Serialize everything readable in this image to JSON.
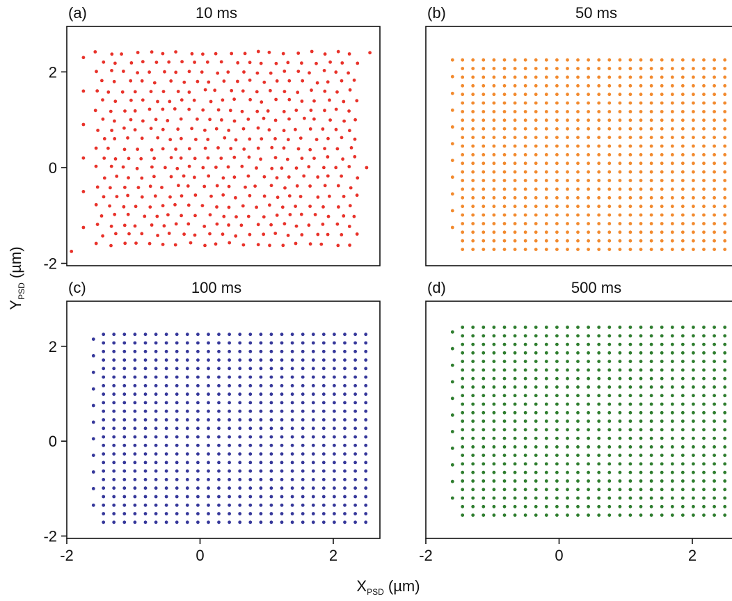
{
  "figure": {
    "xlabel_main": "X",
    "xlabel_sub": "PSD",
    "xlabel_unit": " (µm)",
    "ylabel_main": "Y",
    "ylabel_sub": "PSD",
    "ylabel_unit": " (µm)"
  },
  "chart_data": [
    {
      "type": "scatter",
      "panel": "(a)",
      "title": "10 ms",
      "color": "#e8322a",
      "xlim": [
        -2,
        2.7
      ],
      "ylim": [
        -2.05,
        2.95
      ],
      "xticks": [],
      "yticks": [
        -2,
        0,
        2
      ],
      "yticklabels": [
        "-2",
        "0",
        "2"
      ],
      "grid": {
        "x_start": -1.55,
        "x_step": 0.2,
        "x_count": 20,
        "y_start": 2.4,
        "y_step": 0.2,
        "y_count": 21
      },
      "jitter": true,
      "extra_points": [
        [
          -1.93,
          -1.75
        ],
        [
          -1.75,
          2.3
        ],
        [
          -1.75,
          1.6
        ],
        [
          -1.75,
          0.9
        ],
        [
          -1.75,
          0.2
        ],
        [
          -1.75,
          -0.5
        ],
        [
          -1.75,
          -1.25
        ],
        [
          2.55,
          2.4
        ],
        [
          2.5,
          0.0
        ]
      ]
    },
    {
      "type": "scatter",
      "panel": "(b)",
      "title": "50 ms",
      "color": "#f28a2e",
      "xlim": [
        -2,
        2.7
      ],
      "ylim": [
        -2.05,
        2.95
      ],
      "xticks": [],
      "yticks": [],
      "grid": {
        "x_start": -1.45,
        "x_step": 0.1575,
        "x_count": 26,
        "y_start": 2.25,
        "y_step": 0.18,
        "y_count": 23
      },
      "jitter": false,
      "extra_points": [
        [
          -1.6,
          2.25
        ],
        [
          -1.6,
          1.9
        ],
        [
          -1.6,
          1.55
        ],
        [
          -1.6,
          1.2
        ],
        [
          -1.6,
          0.85
        ],
        [
          -1.6,
          0.5
        ],
        [
          -1.6,
          0.15
        ],
        [
          -1.6,
          -0.2
        ],
        [
          -1.6,
          -0.55
        ],
        [
          -1.6,
          -0.9
        ],
        [
          -1.6,
          -1.25
        ]
      ]
    },
    {
      "type": "scatter",
      "panel": "(c)",
      "title": "100 ms",
      "color": "#35379a",
      "xlim": [
        -2,
        2.7
      ],
      "ylim": [
        -2.05,
        2.95
      ],
      "xticks": [
        -2,
        0,
        2
      ],
      "xticklabels": [
        "-2",
        "0",
        "2"
      ],
      "yticks": [
        -2,
        0,
        2
      ],
      "yticklabels": [
        "-2",
        "0",
        "2"
      ],
      "grid": {
        "x_start": -1.45,
        "x_step": 0.1575,
        "x_count": 26,
        "y_start": 2.25,
        "y_step": 0.18,
        "y_count": 23
      },
      "jitter": false,
      "extra_points": [
        [
          -1.6,
          2.15
        ],
        [
          -1.6,
          1.8
        ],
        [
          -1.6,
          1.45
        ],
        [
          -1.6,
          1.1
        ],
        [
          -1.6,
          0.75
        ],
        [
          -1.6,
          0.4
        ],
        [
          -1.6,
          0.05
        ],
        [
          -1.6,
          -0.3
        ],
        [
          -1.6,
          -0.65
        ],
        [
          -1.6,
          -1.0
        ],
        [
          -1.6,
          -1.35
        ]
      ]
    },
    {
      "type": "scatter",
      "panel": "(d)",
      "title": "500 ms",
      "color": "#2e7d2e",
      "xlim": [
        -2,
        2.7
      ],
      "ylim": [
        -2.05,
        2.95
      ],
      "xticks": [
        -2,
        0,
        2
      ],
      "xticklabels": [
        "-2",
        "0",
        "2"
      ],
      "yticks": [],
      "grid": {
        "x_start": -1.45,
        "x_step": 0.1575,
        "x_count": 26,
        "y_start": 2.4,
        "y_step": 0.18,
        "y_count": 23
      },
      "jitter": false,
      "extra_points": [
        [
          -1.6,
          2.3
        ],
        [
          -1.6,
          1.95
        ],
        [
          -1.6,
          1.6
        ],
        [
          -1.6,
          1.25
        ],
        [
          -1.6,
          0.9
        ],
        [
          -1.6,
          0.55
        ],
        [
          -1.6,
          0.2
        ],
        [
          -1.6,
          -0.15
        ],
        [
          -1.6,
          -0.5
        ],
        [
          -1.6,
          -0.85
        ],
        [
          -1.6,
          -1.2
        ]
      ]
    }
  ]
}
